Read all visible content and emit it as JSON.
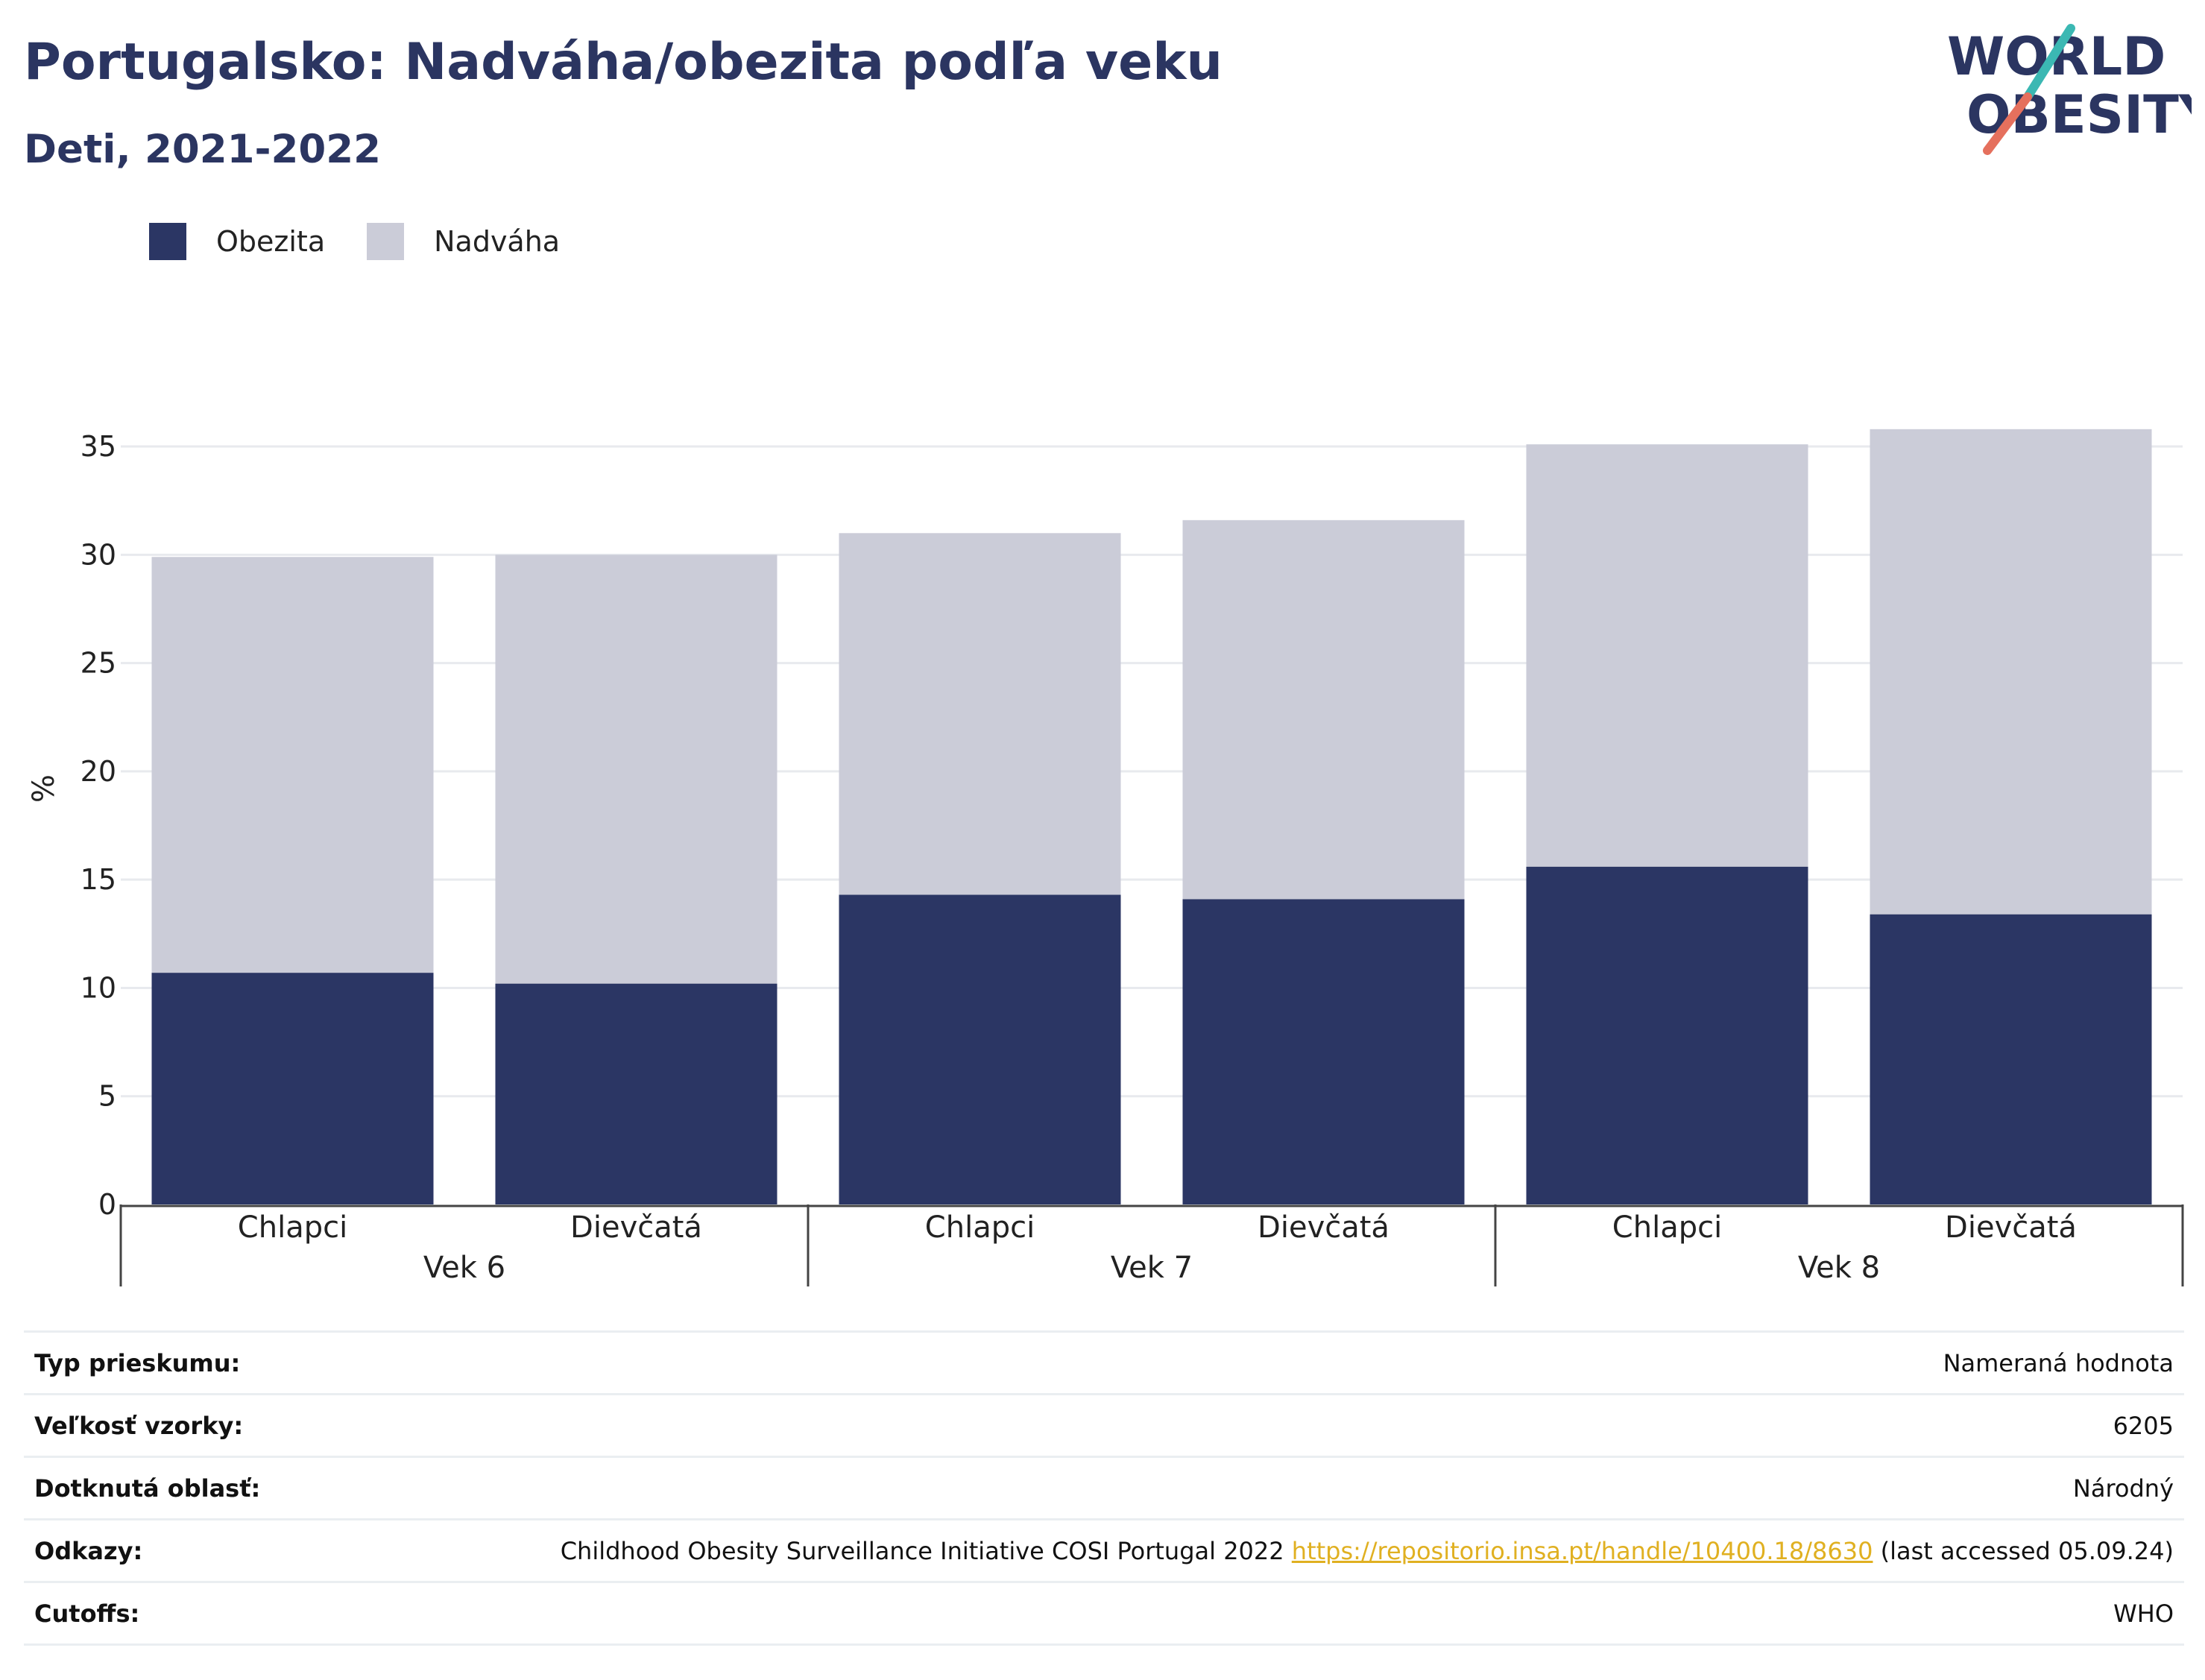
{
  "title": "Portugalsko: Nadváha/obezita podľa veku",
  "subtitle": "Deti, 2021-2022",
  "logo": {
    "line1": "WORLD",
    "line2": "OBESITY"
  },
  "colors": {
    "obezita": "#2b3664",
    "nadvaha": "#cbccd8",
    "title": "#2b3561",
    "link": "#e0b021",
    "logo_teal": "#3bb8b3",
    "logo_coral": "#e5705d"
  },
  "chart_data": {
    "type": "bar",
    "stacked": true,
    "ylabel": "%",
    "ylim": [
      0,
      36
    ],
    "yticks": [
      0,
      5,
      10,
      15,
      20,
      25,
      30,
      35
    ],
    "grid": true,
    "legend_position": "top-left",
    "groups": [
      "Vek 6",
      "Vek 7",
      "Vek 8"
    ],
    "categories": [
      "Chlapci",
      "Dievčatá",
      "Chlapci",
      "Dievčatá",
      "Chlapci",
      "Dievčatá"
    ],
    "series": [
      {
        "name": "Obezita",
        "values": [
          10.7,
          10.2,
          14.3,
          14.1,
          15.6,
          13.4
        ]
      },
      {
        "name": "Nadváha",
        "values": [
          19.2,
          19.8,
          16.7,
          17.5,
          19.5,
          22.4
        ]
      }
    ]
  },
  "info": [
    {
      "label": "Typ prieskumu:",
      "value": "Nameraná hodnota"
    },
    {
      "label": "Veľkosť vzorky:",
      "value": "6205"
    },
    {
      "label": "Dotknutá oblasť:",
      "value": "Národný"
    },
    {
      "label": "Odkazy:",
      "value_prefix": "Childhood Obesity Surveillance Initiative COSI Portugal 2022 ",
      "link": "https://repositorio.insa.pt/handle/10400.18/8630",
      "value_suffix": " (last accessed 05.09.24)"
    },
    {
      "label": "Cutoffs:",
      "value": "WHO"
    }
  ]
}
